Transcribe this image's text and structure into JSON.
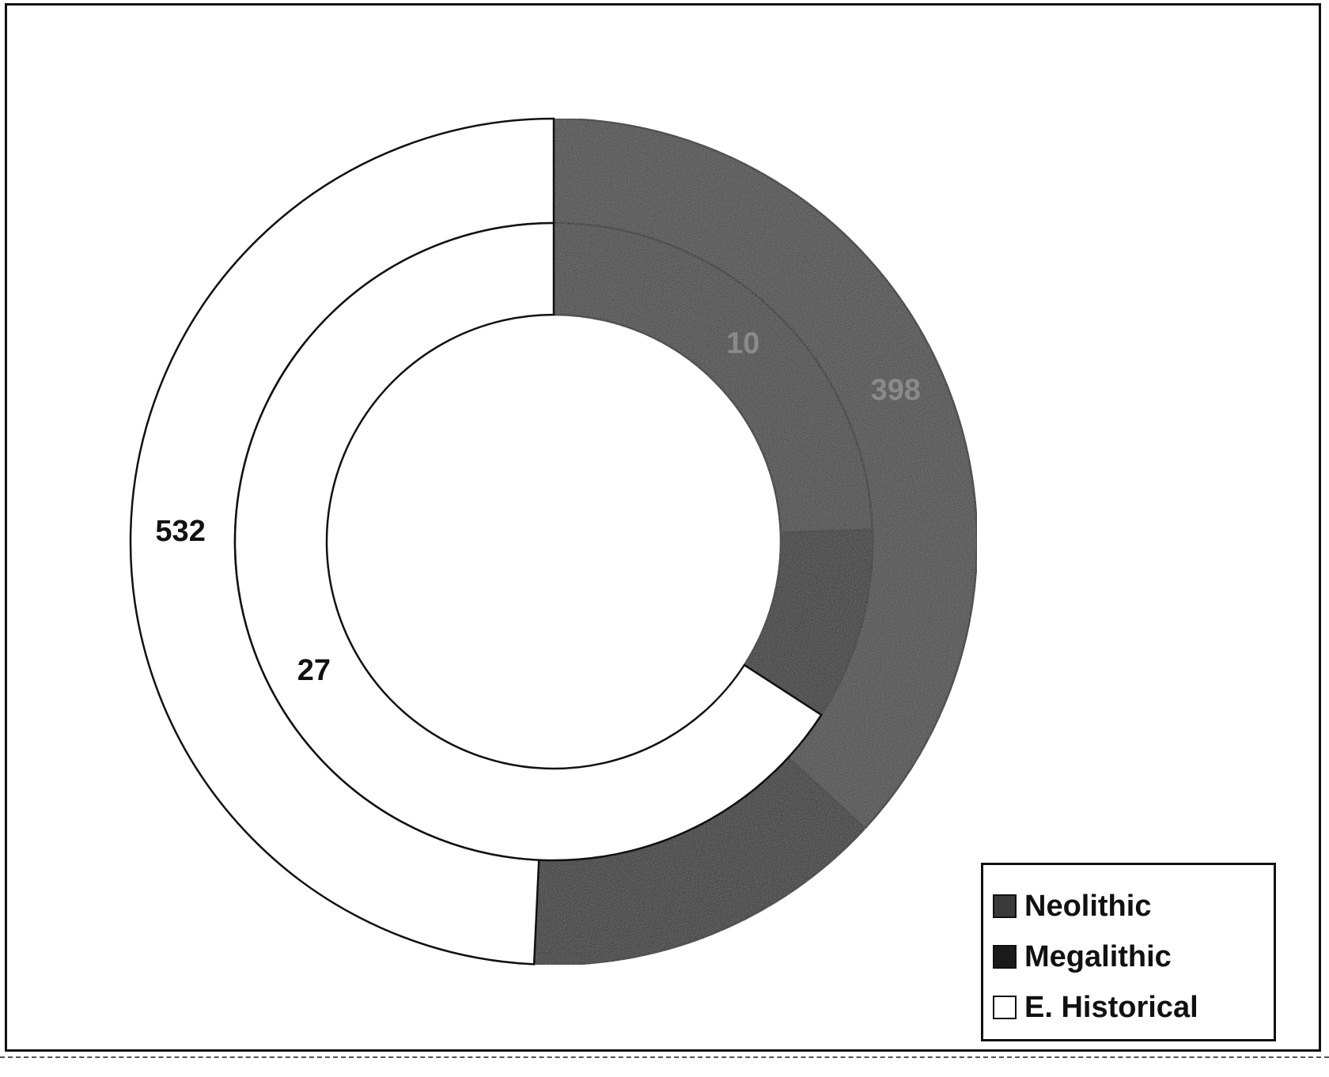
{
  "chart_data": {
    "type": "doughnut",
    "rings": [
      {
        "ring": "inner",
        "values": [
          10,
          4,
          27
        ],
        "labels": [
          "10",
          "",
          "27"
        ]
      },
      {
        "ring": "outer",
        "values": [
          398,
          150,
          532
        ],
        "labels": [
          "398",
          "",
          "532"
        ]
      }
    ],
    "legend": {
      "position": "bottom-right",
      "entries": [
        "Neolithic",
        "Megalithic",
        "E. Historical"
      ]
    },
    "colors": {
      "Neolithic": "#3a3a3a",
      "Megalithic": "#1a1a1a",
      "E. Historical": "#ffffff"
    },
    "outer_ring_colors": [
      "#3d3d3d",
      "#1a1a1a",
      "#ffffff"
    ]
  }
}
